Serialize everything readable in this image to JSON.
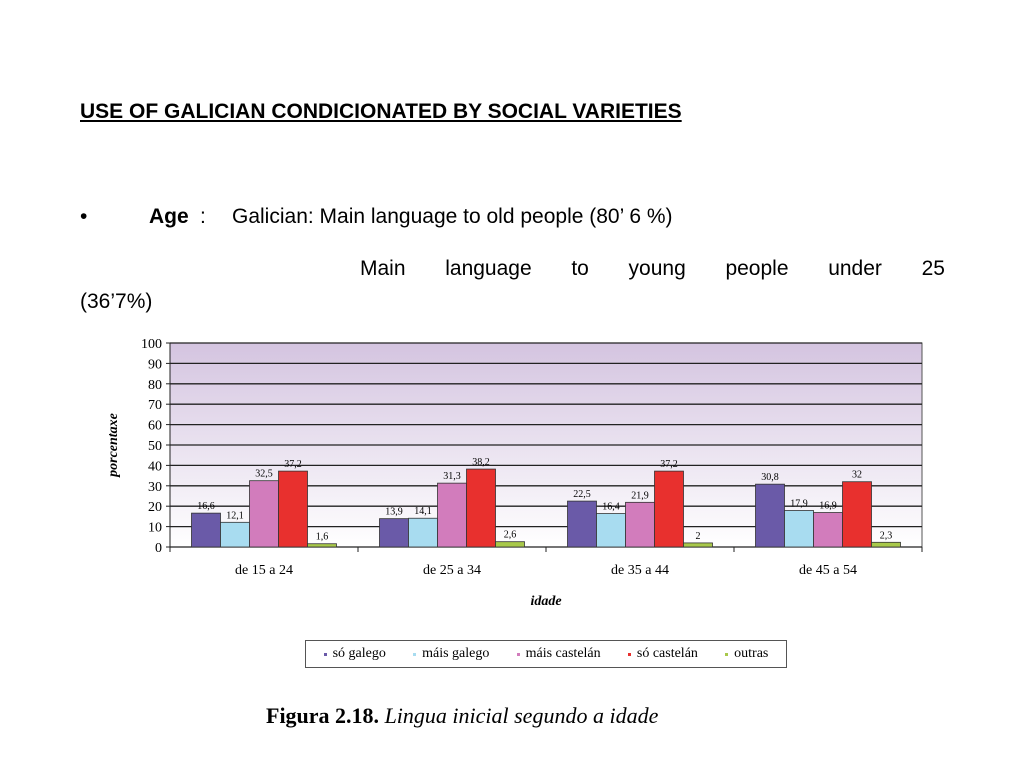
{
  "heading": "USE OF GALICIAN CONDICIONATED BY SOCIAL VARIETIES",
  "bullet": {
    "symbol": "•",
    "label": "Age",
    "colon": ":",
    "text": "Galician: Main language to old people  (80’ 6 %)",
    "line2_words": [
      "Main",
      "language",
      "to",
      "young",
      "people",
      "under",
      "25"
    ],
    "line3": "(36’7%)"
  },
  "legend": [
    {
      "label": "só galego",
      "color": "#6a5aa8"
    },
    {
      "label": "máis galego",
      "color": "#a8dcf0"
    },
    {
      "label": "máis castelán",
      "color": "#d27cbc"
    },
    {
      "label": "só castelán",
      "color": "#e8302e"
    },
    {
      "label": "outras",
      "color": "#a8c84a"
    }
  ],
  "caption": {
    "figure": "Figura 2.18.",
    "text": "Lingua inicial segundo a idade"
  },
  "chart_data": {
    "type": "bar",
    "title": "",
    "xlabel": "idade",
    "ylabel": "porcentaxe",
    "ylim": [
      0,
      100
    ],
    "yticks": [
      0,
      10,
      20,
      30,
      40,
      50,
      60,
      70,
      80,
      90,
      100
    ],
    "categories": [
      "de 15 a 24",
      "de 25 a 34",
      "de 35 a 44",
      "de 45 a 54"
    ],
    "series": [
      {
        "name": "só galego",
        "color": "#6a5aa8",
        "values": [
          16.6,
          13.9,
          22.5,
          30.8
        ],
        "labels": [
          "16,6",
          "13,9",
          "22,5",
          "30,8"
        ]
      },
      {
        "name": "máis galego",
        "color": "#a8dcf0",
        "values": [
          12.1,
          14.1,
          16.4,
          17.9
        ],
        "labels": [
          "12,1",
          "14,1",
          "16,4",
          "17,9"
        ]
      },
      {
        "name": "máis castelán",
        "color": "#d27cbc",
        "values": [
          32.5,
          31.3,
          21.9,
          16.9
        ],
        "labels": [
          "32,5",
          "31,3",
          "21,9",
          "16,9"
        ]
      },
      {
        "name": "só castelán",
        "color": "#e8302e",
        "values": [
          37.2,
          38.2,
          37.2,
          32
        ],
        "labels": [
          "37,2",
          "38,2",
          "37,2",
          "32"
        ]
      },
      {
        "name": "outras",
        "color": "#a8c84a",
        "values": [
          1.6,
          2.6,
          2,
          2.3
        ],
        "labels": [
          "1,6",
          "2,6",
          "2",
          "2,3"
        ]
      }
    ],
    "grid": true,
    "legend_position": "bottom"
  }
}
